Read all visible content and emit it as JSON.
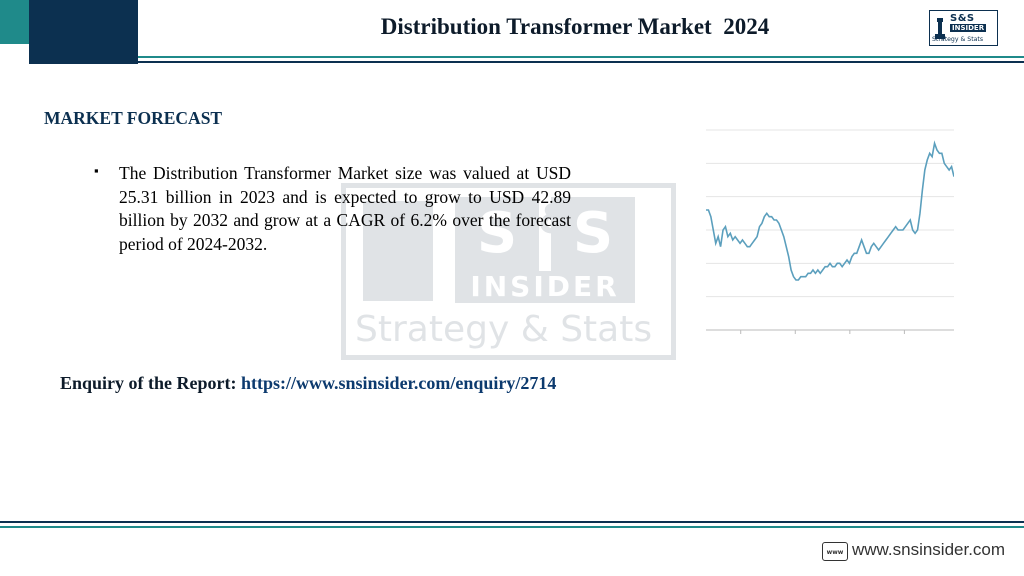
{
  "header": {
    "title": "Distribution Transformer Market  2024",
    "logo": {
      "text_ss": "S&S",
      "text_insider": "INSIDER",
      "tagline": "Strategy & Stats"
    }
  },
  "watermark": {
    "s1": "S",
    "amp": "&",
    "s2": "S",
    "insider": "INSIDER",
    "strategy": "Strategy & Stats"
  },
  "section": {
    "heading": "MARKET FORECAST",
    "bullet_glyph": "▪",
    "text": "The Distribution Transformer Market size was valued at USD 25.31 billion in 2023 and is expected to grow to USD 42.89 billion by 2032 and grow at a CAGR of 6.2% over the forecast period of 2024-2032."
  },
  "enquiry": {
    "label": "Enquiry of the Report: ",
    "url": "https://www.snsinsider.com/enquiry/2714"
  },
  "footer": {
    "www_icon_text": "www",
    "url": "www.snsinsider.com"
  },
  "colors": {
    "navy": "#0c3050",
    "teal": "#1f8a8a",
    "chart_line": "#5b9fbd",
    "grid": "#e4e4e4"
  },
  "chart_data": {
    "type": "line",
    "title": "",
    "xlabel": "",
    "ylabel": "",
    "ylim": [
      0,
      6
    ],
    "grid": true,
    "series": [
      {
        "values": [
          3.6,
          3.6,
          3.4,
          3.0,
          2.6,
          2.8,
          2.5,
          3.0,
          3.1,
          2.8,
          2.9,
          2.7,
          2.8,
          2.7,
          2.6,
          2.7,
          2.6,
          2.5,
          2.5,
          2.6,
          2.7,
          2.8,
          3.1,
          3.2,
          3.4,
          3.5,
          3.4,
          3.4,
          3.3,
          3.3,
          3.2,
          3.0,
          2.8,
          2.5,
          2.2,
          1.8,
          1.6,
          1.5,
          1.5,
          1.6,
          1.6,
          1.6,
          1.7,
          1.7,
          1.8,
          1.7,
          1.8,
          1.7,
          1.8,
          1.9,
          1.9,
          2.0,
          1.9,
          1.9,
          2.0,
          2.0,
          1.9,
          2.0,
          2.1,
          2.0,
          2.2,
          2.3,
          2.3,
          2.5,
          2.7,
          2.5,
          2.3,
          2.3,
          2.5,
          2.6,
          2.5,
          2.4,
          2.5,
          2.6,
          2.7,
          2.8,
          2.9,
          3.0,
          3.1,
          3.0,
          3.0,
          3.0,
          3.1,
          3.2,
          3.3,
          3.0,
          2.9,
          3.0,
          3.5,
          4.2,
          4.8,
          5.1,
          5.3,
          5.2,
          5.6,
          5.4,
          5.3,
          5.3,
          5.0,
          4.9,
          4.8,
          4.9,
          4.6
        ]
      }
    ]
  }
}
